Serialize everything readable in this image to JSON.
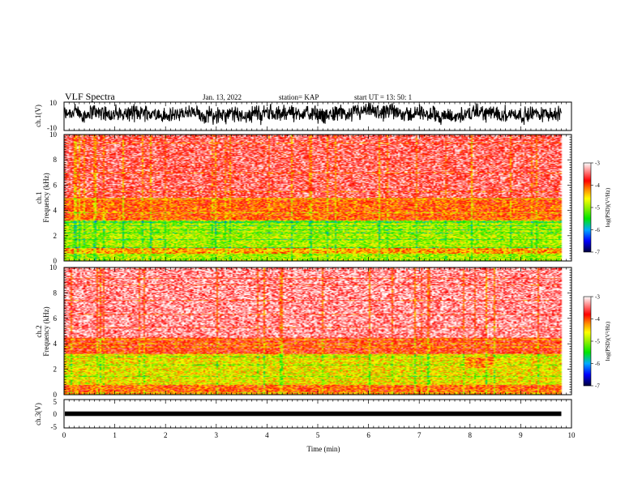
{
  "header": {
    "title": "VLF Spectra",
    "date": "Jan. 13, 2022",
    "station": "station= KAP",
    "start": "start  UT  =   13: 50: 1"
  },
  "chart_data": [
    {
      "type": "line",
      "name": "ch1-waveform",
      "ylabel": "ch.1(V)",
      "ylim": [
        -10,
        10
      ],
      "yticks": [
        "10",
        "-10"
      ],
      "xlim": [
        0,
        10
      ],
      "x_end": 9.8,
      "baseline": 1.5,
      "amplitude": 7
    },
    {
      "type": "heatmap",
      "name": "ch1-spectrogram",
      "ylabel": "ch.1\nFrequency (kHz)",
      "ylim": [
        0,
        10
      ],
      "yticks": [
        "0",
        "2",
        "4",
        "6",
        "8",
        "10"
      ],
      "xlim": [
        0,
        10
      ],
      "x_end": 9.8,
      "colorbar": {
        "label": "log(PSD)(V²/Hz)",
        "range": [
          -7,
          -3
        ],
        "ticks": [
          "-3",
          "-4",
          "-5",
          "-6",
          "-7"
        ]
      },
      "bands": [
        {
          "f": [
            0,
            0.6
          ],
          "level": -4.9
        },
        {
          "f": [
            0.6,
            1.0
          ],
          "level": -4.3
        },
        {
          "f": [
            1.0,
            3.2
          ],
          "level": -4.9
        },
        {
          "f": [
            3.2,
            5.0
          ],
          "level": -4.0
        },
        {
          "f": [
            5.0,
            10.0
          ],
          "level": -3.5
        }
      ]
    },
    {
      "type": "heatmap",
      "name": "ch2-spectrogram",
      "ylabel": "ch.2\nFrequency (kHz)",
      "ylim": [
        0,
        10
      ],
      "yticks": [
        "0",
        "2",
        "4",
        "6",
        "8",
        "10"
      ],
      "xlim": [
        0,
        10
      ],
      "x_end": 9.8,
      "colorbar": {
        "label": "log(PSD)(V²/Hz)",
        "range": [
          -7,
          -3
        ],
        "ticks": [
          "-3",
          "-4",
          "-5",
          "-6",
          "-7"
        ]
      },
      "bands": [
        {
          "f": [
            0,
            0.8
          ],
          "level": -4.0
        },
        {
          "f": [
            0.8,
            3.2
          ],
          "level": -4.6
        },
        {
          "f": [
            3.2,
            4.5
          ],
          "level": -3.8
        },
        {
          "f": [
            4.5,
            10.0
          ],
          "level": -3.3
        }
      ],
      "patch": {
        "t": [
          7.9,
          8.5
        ],
        "f": [
          2.1,
          3.0
        ],
        "level": -4.1
      }
    },
    {
      "type": "line",
      "name": "ch3-waveform",
      "ylabel": "ch.3(V)",
      "ylim": [
        -5,
        5
      ],
      "yticks": [
        "5",
        "0",
        "-5"
      ],
      "xlim": [
        0,
        10
      ],
      "x_end": 9.8,
      "baseline": 0,
      "amplitude": 0.5,
      "xlabel": "Time (min)",
      "xticks": [
        "0",
        "1",
        "2",
        "3",
        "4",
        "5",
        "6",
        "7",
        "8",
        "9",
        "10"
      ]
    }
  ]
}
